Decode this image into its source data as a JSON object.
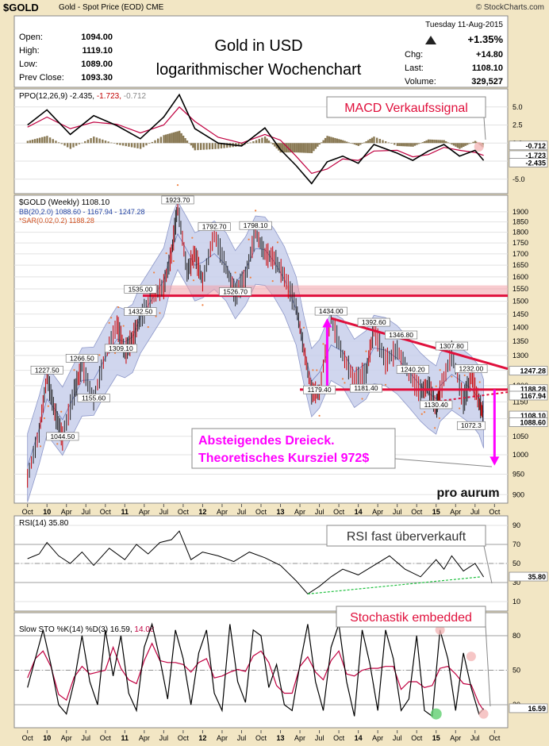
{
  "header": {
    "symbol": "$GOLD",
    "description": "Gold - Spot Price (EOD) CME",
    "source": "© StockCharts.com"
  },
  "ohlc": {
    "open_label": "Open:",
    "open": "1094.00",
    "high_label": "High:",
    "high": "1119.10",
    "low_label": "Low:",
    "low": "1089.00",
    "prev_label": "Prev Close:",
    "prev": "1093.30"
  },
  "title": {
    "line1": "Gold in USD",
    "line2": "logarithmischer Wochenchart"
  },
  "stats": {
    "date": "Tuesday  11-Aug-2015",
    "pct": "+1.35%",
    "chg_label": "Chg:",
    "chg": "+14.80",
    "last_label": "Last:",
    "last": "1108.10",
    "vol_label": "Volume:",
    "vol": "329,527"
  },
  "colors": {
    "price": "#cc0000",
    "bb": "#4060c0",
    "bb_fill": "#c8d0ec",
    "sar": "#f08040",
    "resistance": "#e0103c",
    "target": "#ff00ff",
    "bg": "#f2e6c4",
    "panel": "#ffffff"
  },
  "annotations": {
    "macd_signal": "MACD Verkaufssignal",
    "triangle_line1": "Absteigendes Dreieck.",
    "triangle_line2": "Theoretisches Kursziel 972$",
    "rsi_note": "RSI fast überverkauft",
    "sto_note": "Stochastik embedded",
    "brand": "pro aurum"
  },
  "chart_data": [
    {
      "type": "line",
      "panel": "ppo",
      "legend": "PPO(12,26,9) -2.435, -1.723, -0.712",
      "legend_parts": [
        "PPO(12,26,9) -2.435,",
        "-1.723,",
        "-0.712"
      ],
      "ylim": [
        -7,
        7.5
      ],
      "y_ticks": [
        "5.0",
        "2.5",
        "0.0",
        "-2.5",
        "-5.0"
      ],
      "last_labels": [
        "-0.712",
        "-1.723",
        "-2.435"
      ],
      "x": [
        2009.75,
        2010.0,
        2010.3,
        2010.6,
        2010.9,
        2011.2,
        2011.5,
        2011.7,
        2011.9,
        2012.2,
        2012.5,
        2012.8,
        2013.0,
        2013.2,
        2013.4,
        2013.6,
        2013.8,
        2014.0,
        2014.2,
        2014.5,
        2014.7,
        2014.9,
        2015.1,
        2015.3,
        2015.5,
        2015.61
      ],
      "series": [
        {
          "values": [
            2.5,
            4.6,
            1.2,
            3.8,
            2.4,
            0.6,
            3.6,
            6.7,
            2.0,
            0.0,
            -0.4,
            2.1,
            -0.9,
            -3.1,
            -5.6,
            -2.6,
            -1.8,
            -2.8,
            -0.2,
            -1.4,
            -2.4,
            -1.1,
            -0.2,
            -1.8,
            -1.0,
            -2.4
          ]
        },
        {
          "values": [
            2.2,
            3.6,
            2.0,
            2.9,
            2.6,
            1.4,
            2.5,
            5.0,
            3.0,
            0.8,
            0.0,
            1.2,
            0.4,
            -1.8,
            -4.2,
            -3.6,
            -2.2,
            -2.4,
            -1.1,
            -1.0,
            -1.9,
            -1.6,
            -0.6,
            -1.0,
            -1.3,
            -1.7
          ]
        }
      ]
    },
    {
      "type": "line",
      "panel": "price",
      "scale": "log",
      "legend": [
        "$GOLD (Weekly) 1108.10",
        "BB(20,2.0) 1088.60 - 1167.94 - 1247.28",
        "*SAR(0.02,0.2) 1188.28"
      ],
      "ylim": [
        880,
        1985
      ],
      "y_ticks": [
        1900,
        1850,
        1800,
        1750,
        1700,
        1650,
        1600,
        1550,
        1500,
        1450,
        1400,
        1350,
        1300,
        1250,
        1200,
        1150,
        1100,
        1050,
        1000,
        950,
        900
      ],
      "x": [
        2009.75,
        2009.9,
        2010.0,
        2010.1,
        2010.2,
        2010.35,
        2010.45,
        2010.6,
        2010.75,
        2010.9,
        2011.0,
        2011.1,
        2011.2,
        2011.35,
        2011.5,
        2011.6,
        2011.68,
        2011.8,
        2011.9,
        2012.0,
        2012.15,
        2012.3,
        2012.42,
        2012.55,
        2012.68,
        2012.8,
        2012.92,
        2013.05,
        2013.2,
        2013.3,
        2013.4,
        2013.5,
        2013.65,
        2013.8,
        2013.95,
        2014.1,
        2014.2,
        2014.35,
        2014.5,
        2014.65,
        2014.8,
        2014.9,
        2015.0,
        2015.05,
        2015.2,
        2015.35,
        2015.45,
        2015.55,
        2015.61
      ],
      "series": [
        {
          "name": "$GOLD (Weekly)",
          "values": [
            940,
            1060,
            1227.5,
            1120,
            1044.5,
            1180,
            1266.5,
            1155.6,
            1300,
            1410,
            1309.1,
            1360,
            1432.5,
            1520,
            1560,
            1700,
            1923.7,
            1620,
            1700,
            1580,
            1792.7,
            1640,
            1526.7,
            1600,
            1798.1,
            1700,
            1680,
            1600,
            1480,
            1320,
            1180,
            1179.4,
            1434,
            1300,
            1220,
            1240,
            1392.6,
            1280,
            1320,
            1240.2,
            1181.4,
            1200,
            1130.4,
            1180,
            1307.8,
            1150,
            1232,
            1150,
            1108.1
          ]
        }
      ],
      "labels": [
        "1923.70",
        "1792.70",
        "1798.10",
        "1535.00",
        "1526.70",
        "1432.50",
        "1227.50",
        "1266.50",
        "1309.10",
        "1155.60",
        "1044.50",
        "1434.00",
        "1392.60",
        "1346.80",
        "1307.80",
        "1232.00",
        "1240.20",
        "1181.40",
        "1179.40",
        "1130.40",
        "1072.3"
      ],
      "last_labels": [
        "1247.28",
        "1188.28",
        "1167.94",
        "1108.10",
        "1088.60"
      ],
      "support": 1535,
      "triangle_base": 1188,
      "target": 972
    },
    {
      "type": "line",
      "panel": "rsi",
      "legend": "RSI(14) 35.80",
      "ylim": [
        0,
        100
      ],
      "y_ticks": [
        90,
        70,
        50,
        30,
        10
      ],
      "last_labels": [
        "35.80"
      ],
      "x": [
        2009.75,
        2009.9,
        2010.0,
        2010.15,
        2010.3,
        2010.45,
        2010.6,
        2010.8,
        2011.0,
        2011.15,
        2011.3,
        2011.45,
        2011.6,
        2011.7,
        2011.85,
        2012.0,
        2012.2,
        2012.4,
        2012.6,
        2012.8,
        2013.0,
        2013.2,
        2013.35,
        2013.5,
        2013.65,
        2013.8,
        2014.0,
        2014.2,
        2014.4,
        2014.6,
        2014.8,
        2015.0,
        2015.1,
        2015.2,
        2015.35,
        2015.5,
        2015.61
      ],
      "series": [
        {
          "name": "RSI(14)",
          "values": [
            55,
            60,
            72,
            58,
            50,
            62,
            48,
            66,
            54,
            70,
            60,
            72,
            75,
            84,
            54,
            62,
            58,
            52,
            62,
            56,
            48,
            32,
            18,
            26,
            36,
            44,
            38,
            48,
            58,
            44,
            36,
            54,
            44,
            58,
            42,
            50,
            35.8
          ]
        }
      ],
      "trendline": [
        [
          2013.35,
          18
        ],
        [
          2015.58,
          36
        ]
      ]
    },
    {
      "type": "line",
      "panel": "stochastic",
      "legend": "Slow STO %K(14) %D(3) 16.59, 14.08",
      "legend_parts": [
        "Slow STO %K(14) %D(3) 16.59,",
        "14.08"
      ],
      "ylim": [
        0,
        100
      ],
      "y_ticks": [
        80,
        50,
        20
      ],
      "last_labels": [
        "16.59"
      ],
      "x": [
        2009.75,
        2009.85,
        2009.95,
        2010.05,
        2010.15,
        2010.25,
        2010.35,
        2010.45,
        2010.55,
        2010.65,
        2010.75,
        2010.85,
        2010.95,
        2011.05,
        2011.15,
        2011.25,
        2011.35,
        2011.45,
        2011.55,
        2011.65,
        2011.75,
        2011.85,
        2011.95,
        2012.05,
        2012.15,
        2012.25,
        2012.35,
        2012.45,
        2012.55,
        2012.65,
        2012.75,
        2012.85,
        2012.95,
        2013.05,
        2013.15,
        2013.25,
        2013.35,
        2013.45,
        2013.55,
        2013.65,
        2013.75,
        2013.85,
        2013.95,
        2014.05,
        2014.15,
        2014.25,
        2014.35,
        2014.45,
        2014.55,
        2014.65,
        2014.75,
        2014.85,
        2014.95,
        2015.05,
        2015.15,
        2015.25,
        2015.35,
        2015.45,
        2015.55,
        2015.61
      ],
      "series": [
        {
          "name": "%K",
          "values": [
            35,
            60,
            85,
            55,
            20,
            12,
            40,
            80,
            40,
            20,
            85,
            45,
            80,
            30,
            15,
            70,
            90,
            60,
            25,
            85,
            60,
            20,
            65,
            85,
            30,
            15,
            90,
            40,
            22,
            85,
            80,
            35,
            55,
            20,
            15,
            55,
            90,
            40,
            15,
            70,
            90,
            40,
            10,
            85,
            55,
            15,
            85,
            60,
            15,
            25,
            80,
            15,
            10,
            85,
            60,
            15,
            65,
            35,
            12,
            16.59
          ]
        }
      ]
    }
  ],
  "x_axis_labels": [
    "Oct",
    "10",
    "Apr",
    "Jul",
    "Oct",
    "11",
    "Apr",
    "Jul",
    "Oct",
    "12",
    "Apr",
    "Jul",
    "Oct",
    "13",
    "Apr",
    "Jul",
    "Oct",
    "14",
    "Apr",
    "Jul",
    "Oct",
    "15",
    "Apr",
    "Jul",
    "Oct"
  ]
}
